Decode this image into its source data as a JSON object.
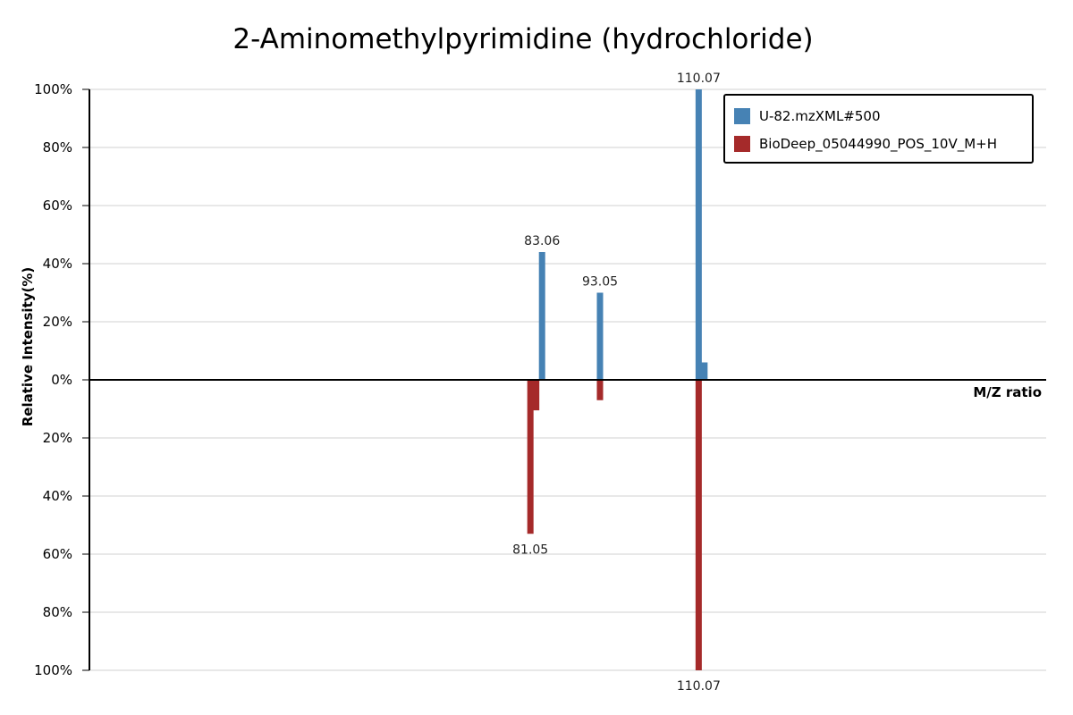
{
  "chart_data": {
    "type": "bar",
    "title": "2-Aminomethylpyrimidine (hydrochloride)",
    "xlabel": "M/Z ratio",
    "ylabel": "Relative Intensity(%)",
    "ylim": [
      -100,
      100
    ],
    "xlim": [
      5,
      170
    ],
    "y_ticks": [
      "100%",
      "80%",
      "60%",
      "40%",
      "20%",
      "0%",
      "20%",
      "40%",
      "60%",
      "80%",
      "100%"
    ],
    "grid": true,
    "legend_position": "top-right",
    "series": [
      {
        "name": "U-82.mzXML#500",
        "color": "#4682b4",
        "direction": "up",
        "peaks": [
          {
            "mz": 83.06,
            "intensity": 44,
            "label": "83.06"
          },
          {
            "mz": 93.05,
            "intensity": 30,
            "label": "93.05"
          },
          {
            "mz": 110.07,
            "intensity": 100,
            "label": "110.07"
          },
          {
            "mz": 111.07,
            "intensity": 6,
            "label": ""
          }
        ]
      },
      {
        "name": "BioDeep_05044990_POS_10V_M+H",
        "color": "#a52a2a",
        "direction": "down",
        "peaks": [
          {
            "mz": 81.05,
            "intensity": 53,
            "label": "81.05"
          },
          {
            "mz": 82.05,
            "intensity": 10.5,
            "label": ""
          },
          {
            "mz": 93.05,
            "intensity": 7,
            "label": ""
          },
          {
            "mz": 110.07,
            "intensity": 100,
            "label": "110.07"
          }
        ]
      }
    ]
  }
}
